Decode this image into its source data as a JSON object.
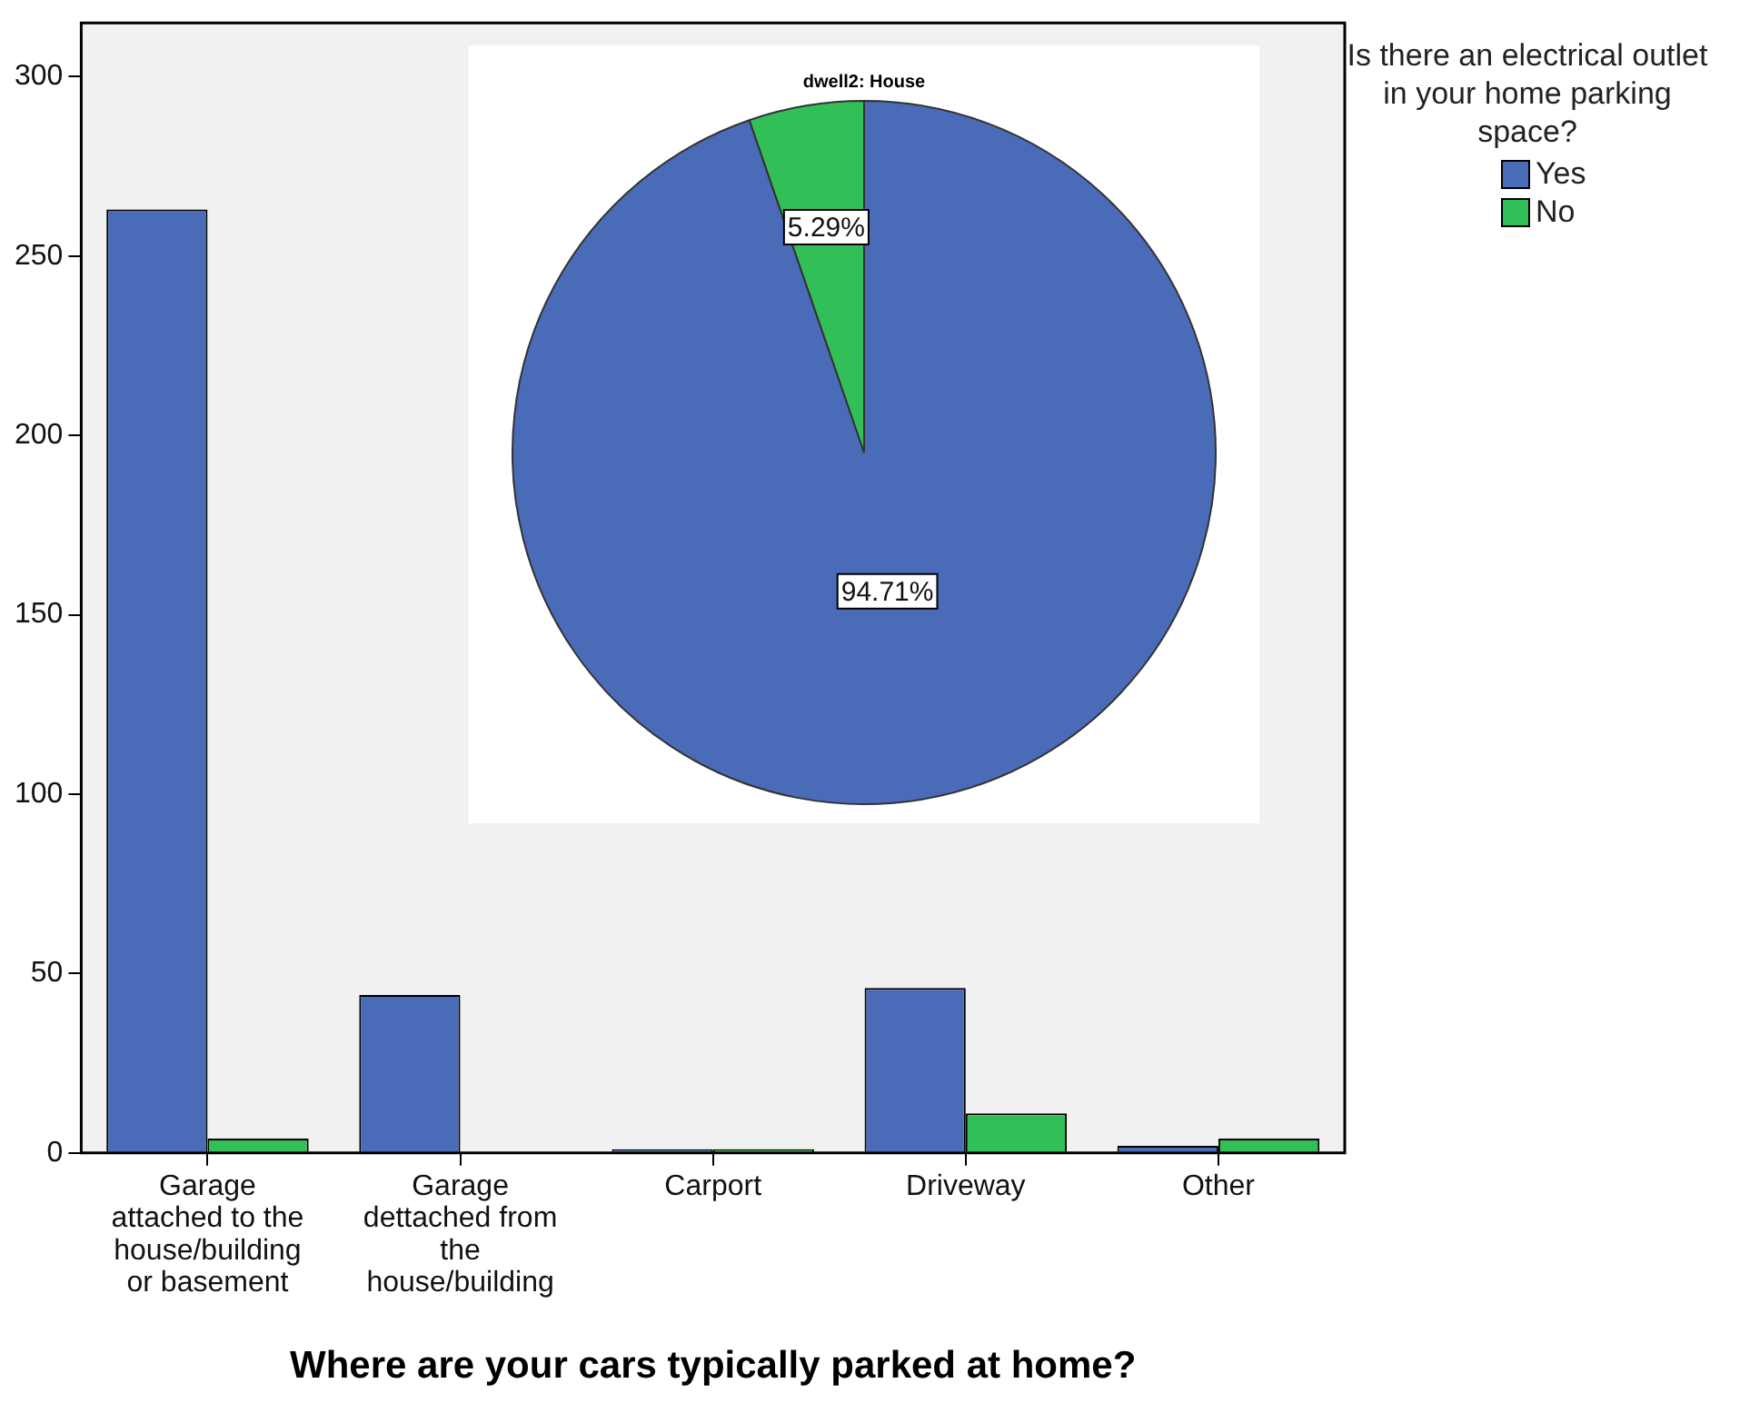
{
  "chart_data": [
    {
      "type": "bar",
      "xlabel": "Where are your cars typically parked at home?",
      "legend_title": "Is there an electrical outlet in your home parking space?",
      "legend": "right",
      "grid": false,
      "categories": [
        "Garage attached to the house/building or basement",
        "Garage dettached from the house/building",
        "Carport",
        "Driveway",
        "Other"
      ],
      "series": [
        {
          "name": "Yes",
          "color": "#4a6bb8",
          "values": [
            263,
            44,
            1,
            46,
            2
          ]
        },
        {
          "name": "No",
          "color": "#32bf58",
          "values": [
            4,
            0,
            1,
            11,
            4
          ]
        }
      ],
      "ylim": [
        0,
        315
      ],
      "yticks": [
        0,
        50,
        100,
        150,
        200,
        250,
        300
      ]
    },
    {
      "type": "pie",
      "title": "dwell2: House",
      "values": [
        94.71,
        5.29
      ],
      "colors": [
        "#4a6bb8",
        "#32bf58"
      ],
      "value_labels": [
        "94.71%",
        "5.29%"
      ]
    }
  ]
}
